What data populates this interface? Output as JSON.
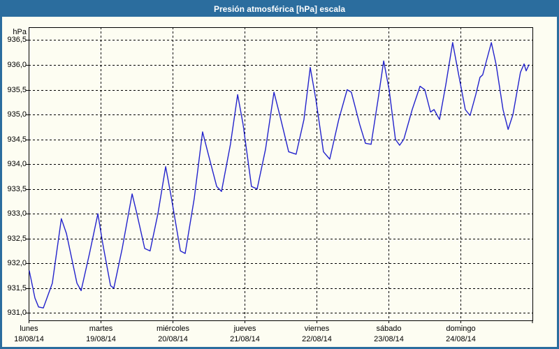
{
  "window": {
    "title": "Presión atmosférica [hPa] escala",
    "chrome_color": "#2b6d9e",
    "title_text_color": "#ffffff",
    "background_color": "#fdfdf2"
  },
  "chart_data": {
    "type": "line",
    "title": "Presión atmosférica [hPa] escala",
    "ylabel": "hPa",
    "x_unit": "hours since lunes 18/08/14 00:00",
    "y_unit": "hPa",
    "ylim": [
      930.85,
      936.76
    ],
    "x_total_hours": 168,
    "grid": "dashed black, horizontal every 0.5 hPa, vertical every 24 h",
    "line_color": "#2222cc",
    "y_ticks": [
      {
        "value": 936.5,
        "label": "936,5"
      },
      {
        "value": 936.0,
        "label": "936,0"
      },
      {
        "value": 935.5,
        "label": "935,5"
      },
      {
        "value": 935.0,
        "label": "935,0"
      },
      {
        "value": 934.5,
        "label": "934,5"
      },
      {
        "value": 934.0,
        "label": "934,0"
      },
      {
        "value": 933.5,
        "label": "933,5"
      },
      {
        "value": 933.0,
        "label": "933,0"
      },
      {
        "value": 932.5,
        "label": "932,5"
      },
      {
        "value": 932.0,
        "label": "932,0"
      },
      {
        "value": 931.5,
        "label": "931,5"
      },
      {
        "value": 931.0,
        "label": "931,0"
      }
    ],
    "x_days": [
      {
        "name": "lunes",
        "date": "18/08/14",
        "start_hour": 0
      },
      {
        "name": "martes",
        "date": "19/08/14",
        "start_hour": 24
      },
      {
        "name": "miércoles",
        "date": "20/08/14",
        "start_hour": 48
      },
      {
        "name": "jueves",
        "date": "21/08/14",
        "start_hour": 72
      },
      {
        "name": "viernes",
        "date": "22/08/14",
        "start_hour": 96
      },
      {
        "name": "sábado",
        "date": "23/08/14",
        "start_hour": 120
      },
      {
        "name": "domingo",
        "date": "24/08/14",
        "start_hour": 144
      }
    ],
    "series": [
      {
        "color": "#2222cc",
        "points": [
          [
            0.2,
            931.85
          ],
          [
            2.1,
            931.3
          ],
          [
            3.3,
            931.12
          ],
          [
            4.9,
            931.1
          ],
          [
            7.9,
            931.6
          ],
          [
            10.9,
            932.9
          ],
          [
            12.6,
            932.6
          ],
          [
            16.1,
            931.6
          ],
          [
            17.5,
            931.45
          ],
          [
            20.3,
            932.2
          ],
          [
            23.1,
            933.0
          ],
          [
            24.7,
            932.4
          ],
          [
            27.3,
            931.55
          ],
          [
            28.4,
            931.5
          ],
          [
            31.2,
            932.3
          ],
          [
            34.5,
            933.4
          ],
          [
            36.1,
            933.0
          ],
          [
            38.7,
            932.3
          ],
          [
            40.5,
            932.25
          ],
          [
            43.1,
            933.0
          ],
          [
            45.7,
            933.95
          ],
          [
            47.5,
            933.35
          ],
          [
            50.6,
            932.25
          ],
          [
            52.2,
            932.2
          ],
          [
            55.2,
            933.3
          ],
          [
            58.0,
            934.65
          ],
          [
            59.9,
            934.2
          ],
          [
            62.7,
            933.55
          ],
          [
            64.3,
            933.45
          ],
          [
            67.3,
            934.4
          ],
          [
            69.7,
            935.4
          ],
          [
            71.5,
            934.8
          ],
          [
            74.3,
            933.55
          ],
          [
            76.2,
            933.5
          ],
          [
            79.0,
            934.3
          ],
          [
            81.8,
            935.45
          ],
          [
            83.7,
            935.0
          ],
          [
            86.7,
            934.25
          ],
          [
            89.2,
            934.2
          ],
          [
            91.8,
            934.9
          ],
          [
            93.9,
            935.95
          ],
          [
            95.8,
            935.3
          ],
          [
            98.3,
            934.25
          ],
          [
            100.4,
            934.1
          ],
          [
            103.4,
            934.9
          ],
          [
            106.2,
            935.5
          ],
          [
            107.6,
            935.45
          ],
          [
            110.4,
            934.8
          ],
          [
            112.3,
            934.42
          ],
          [
            114.2,
            934.4
          ],
          [
            116.5,
            935.3
          ],
          [
            118.4,
            936.08
          ],
          [
            120.2,
            935.5
          ],
          [
            122.3,
            934.5
          ],
          [
            123.7,
            934.38
          ],
          [
            125.1,
            934.5
          ],
          [
            127.9,
            935.1
          ],
          [
            130.5,
            935.57
          ],
          [
            132.1,
            935.5
          ],
          [
            134.0,
            935.05
          ],
          [
            135.2,
            935.1
          ],
          [
            137.0,
            934.9
          ],
          [
            139.1,
            935.6
          ],
          [
            141.4,
            936.45
          ],
          [
            143.1,
            935.9
          ],
          [
            145.6,
            935.1
          ],
          [
            147.2,
            934.98
          ],
          [
            149.1,
            935.4
          ],
          [
            150.5,
            935.75
          ],
          [
            151.4,
            935.8
          ],
          [
            154.3,
            936.45
          ],
          [
            155.9,
            936.0
          ],
          [
            158.2,
            935.1
          ],
          [
            159.9,
            934.7
          ],
          [
            161.5,
            935.0
          ],
          [
            164.0,
            935.85
          ],
          [
            165.2,
            936.02
          ],
          [
            165.9,
            935.88
          ],
          [
            166.8,
            936.0
          ]
        ]
      }
    ]
  }
}
